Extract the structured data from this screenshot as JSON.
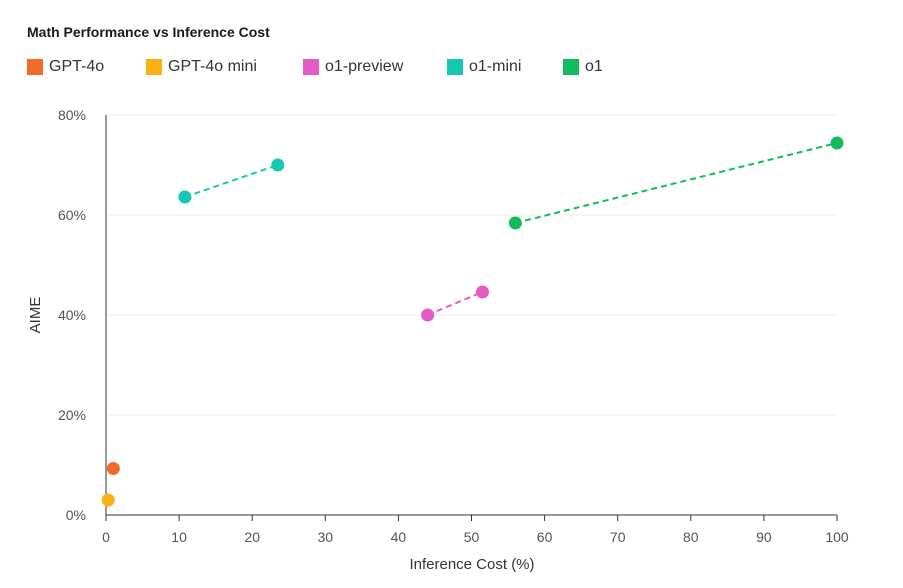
{
  "chart_data": {
    "type": "scatter",
    "title": "Math Performance vs Inference Cost",
    "xlabel": "Inference Cost (%)",
    "ylabel": "AIME",
    "xlim": [
      0,
      100
    ],
    "ylim": [
      0,
      80
    ],
    "x_ticks": [
      "0",
      "10",
      "20",
      "30",
      "40",
      "50",
      "60",
      "70",
      "80",
      "90",
      "100"
    ],
    "y_ticks": [
      "0%",
      "20%",
      "40%",
      "60%",
      "80%"
    ],
    "grid": "horizontal",
    "legend_position": "top-left",
    "series": [
      {
        "name": "GPT-4o",
        "color": "#f26b2a",
        "dashed_connector": false,
        "points": [
          {
            "x": 1,
            "y": 9.3
          }
        ]
      },
      {
        "name": "GPT-4o mini",
        "color": "#f9b012",
        "dashed_connector": false,
        "points": [
          {
            "x": 0.3,
            "y": 3
          }
        ]
      },
      {
        "name": "o1-preview",
        "color": "#e45ac7",
        "dashed_connector": true,
        "points": [
          {
            "x": 44,
            "y": 40
          },
          {
            "x": 51.5,
            "y": 44.6
          }
        ]
      },
      {
        "name": "o1-mini",
        "color": "#14c8b4",
        "dashed_connector": true,
        "points": [
          {
            "x": 10.8,
            "y": 63.6
          },
          {
            "x": 23.5,
            "y": 70
          }
        ]
      },
      {
        "name": "o1",
        "color": "#12bb5e",
        "dashed_connector": true,
        "points": [
          {
            "x": 56,
            "y": 58.4
          },
          {
            "x": 100,
            "y": 74.4
          }
        ]
      }
    ]
  }
}
